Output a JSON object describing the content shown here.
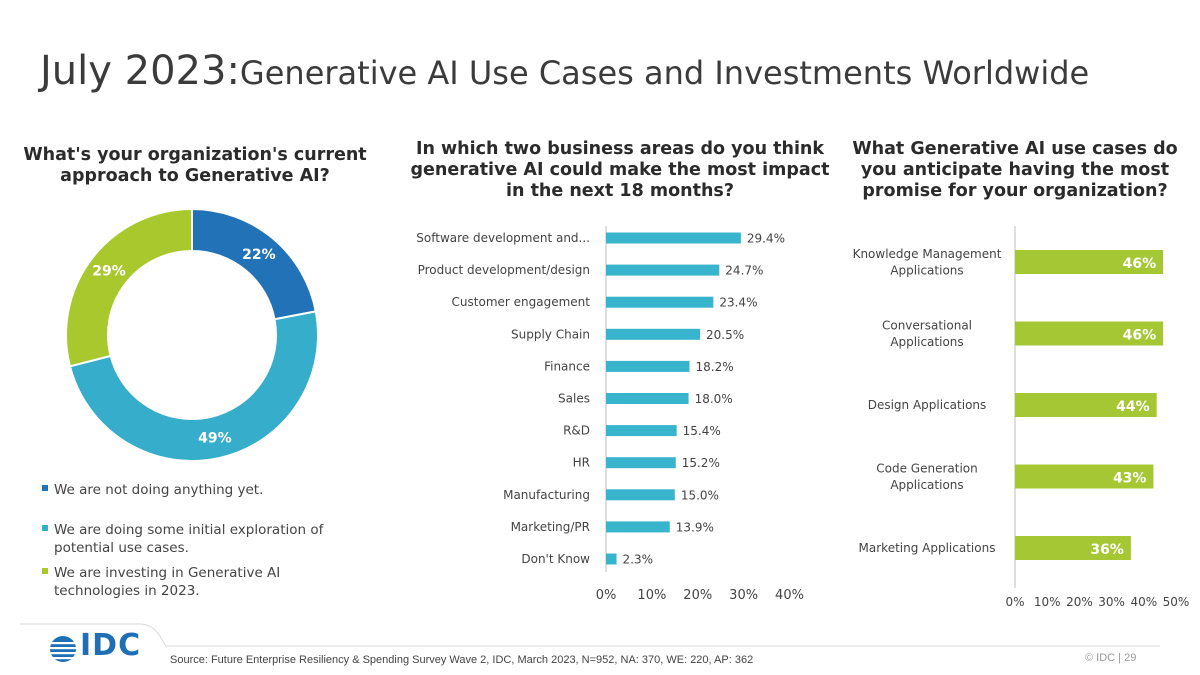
{
  "title": {
    "date": "July 2023:",
    "rest": "Generative AI Use Cases and Investments Worldwide"
  },
  "colors": {
    "dark_blue": "#2272b7",
    "teal": "#36aecb",
    "green": "#a8c82d",
    "bar_teal": "#38b4cc",
    "bar_green": "#a6c734"
  },
  "chart_data": [
    {
      "type": "pie",
      "title": "What's your organization's current approach to Generative AI?",
      "slices": [
        {
          "label": "We are not doing anything yet.",
          "value": 22,
          "display": "22%"
        },
        {
          "label": "We are doing some initial exploration of potential use cases.",
          "value": 49,
          "display": "49%"
        },
        {
          "label": "We are investing in Generative AI technologies in 2023.",
          "value": 29,
          "display": "29%"
        }
      ],
      "legend": "bottom"
    },
    {
      "type": "bar",
      "orientation": "horizontal",
      "title": "In which two business areas do you think generative AI could make the most impact in the next 18 months?",
      "categories": [
        "Software development and...",
        "Product development/design",
        "Customer engagement",
        "Supply Chain",
        "Finance",
        "Sales",
        "R&D",
        "HR",
        "Manufacturing",
        "Marketing/PR",
        "Don't Know"
      ],
      "values": [
        29.4,
        24.7,
        23.4,
        20.5,
        18.2,
        18.0,
        15.4,
        15.2,
        15.0,
        13.9,
        2.3
      ],
      "value_labels": [
        "29.4%",
        "24.7%",
        "23.4%",
        "20.5%",
        "18.2%",
        "18.0%",
        "15.4%",
        "15.2%",
        "15.0%",
        "13.9%",
        "2.3%"
      ],
      "xlim": [
        0,
        40
      ],
      "xticks": [
        "0%",
        "10%",
        "20%",
        "30%",
        "40%"
      ],
      "grid": false
    },
    {
      "type": "bar",
      "orientation": "horizontal",
      "title": "What Generative AI use cases do you anticipate having the most promise for your organization?",
      "categories": [
        [
          "Knowledge Management",
          "Applications"
        ],
        [
          "Conversational",
          "Applications"
        ],
        [
          "Design Applications"
        ],
        [
          "Code Generation",
          "Applications"
        ],
        [
          "Marketing Applications"
        ]
      ],
      "values": [
        46,
        46,
        44,
        43,
        36
      ],
      "value_labels": [
        "46%",
        "46%",
        "44%",
        "43%",
        "36%"
      ],
      "xlim": [
        0,
        50
      ],
      "xticks": [
        "0%",
        "10%",
        "20%",
        "30%",
        "40%",
        "50%"
      ],
      "grid": false
    }
  ],
  "footer": {
    "logo": "IDC",
    "source": "Source: Future Enterprise Resiliency & Spending Survey Wave 2, IDC, March 2023, N=952, NA: 370, WE: 220, AP: 362",
    "copyright": "© IDC | 29"
  }
}
